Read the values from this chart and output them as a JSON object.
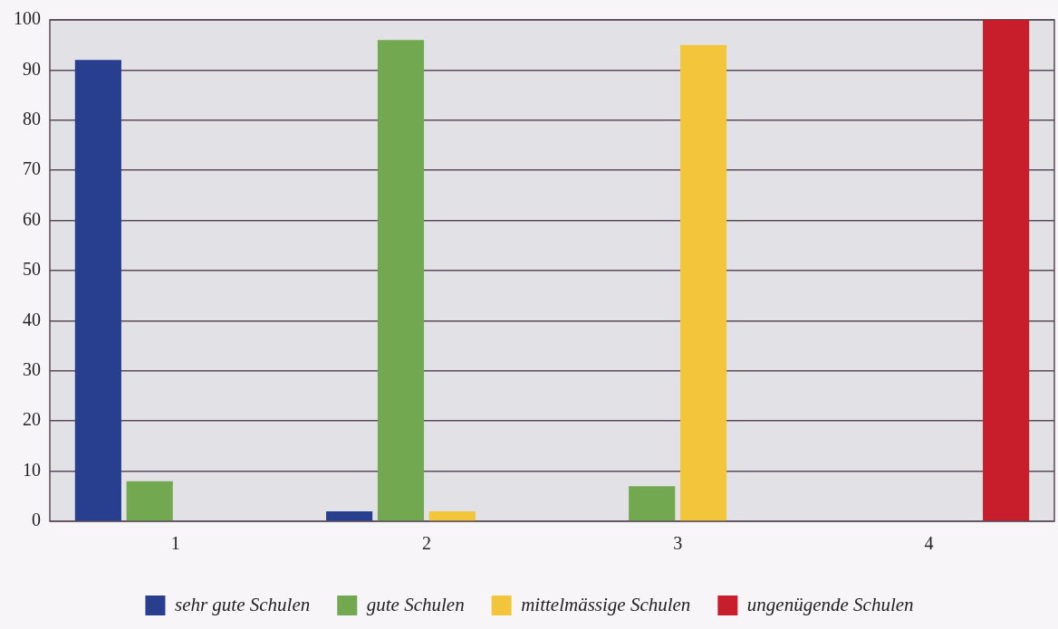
{
  "chart_data": {
    "type": "bar",
    "categories": [
      "1",
      "2",
      "3",
      "4"
    ],
    "series": [
      {
        "name": "sehr gute Schulen",
        "color": "#283f8f",
        "values": [
          92,
          2,
          null,
          null
        ]
      },
      {
        "name": "gute Schulen",
        "color": "#72a84f",
        "values": [
          8,
          96,
          7,
          null
        ]
      },
      {
        "name": "mittelmässige Schulen",
        "color": "#f2c53a",
        "values": [
          null,
          2,
          95,
          null
        ]
      },
      {
        "name": "ungenügende Schulen",
        "color": "#c81e2b",
        "values": [
          null,
          null,
          null,
          100
        ]
      }
    ],
    "ylim": [
      0,
      100
    ],
    "yticks": [
      0,
      10,
      20,
      30,
      40,
      50,
      60,
      70,
      80,
      90,
      100
    ],
    "grid": "y",
    "legend": "bottom"
  }
}
